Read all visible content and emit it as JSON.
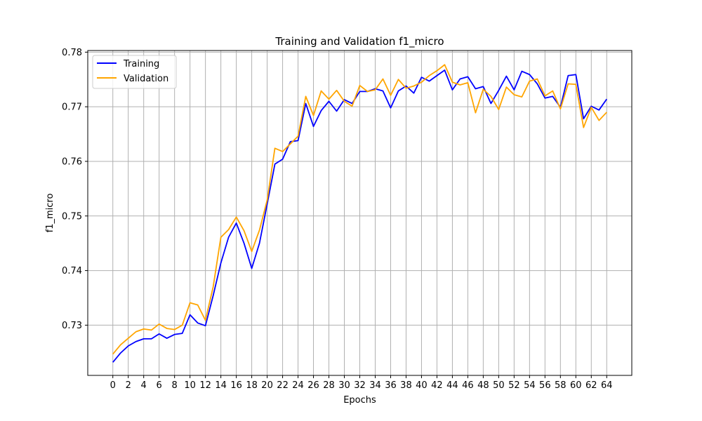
{
  "chart_data": {
    "type": "line",
    "title": "Training and Validation f1_micro",
    "xlabel": "Epochs",
    "ylabel": "f1_micro",
    "xlim": [
      -3.25,
      67.25
    ],
    "ylim": [
      0.7208,
      0.7803
    ],
    "grid": true,
    "legend_position": "top-left",
    "x_ticks": [
      0,
      2,
      4,
      6,
      8,
      10,
      12,
      14,
      16,
      18,
      20,
      22,
      24,
      26,
      28,
      30,
      32,
      34,
      36,
      38,
      40,
      42,
      44,
      46,
      48,
      50,
      52,
      54,
      56,
      58,
      60,
      62,
      64
    ],
    "x_tick_labels": [
      "0",
      "2",
      "4",
      "6",
      "8",
      "10",
      "12",
      "14",
      "16",
      "18",
      "20",
      "22",
      "24",
      "26",
      "28",
      "30",
      "32",
      "34",
      "36",
      "38",
      "40",
      "42",
      "44",
      "46",
      "48",
      "50",
      "52",
      "54",
      "56",
      "58",
      "60",
      "62",
      "64"
    ],
    "y_ticks": [
      0.73,
      0.74,
      0.75,
      0.76,
      0.77,
      0.78
    ],
    "y_tick_labels": [
      "0.73",
      "0.74",
      "0.75",
      "0.76",
      "0.77",
      "0.78"
    ],
    "x": [
      0,
      1,
      2,
      3,
      4,
      5,
      6,
      7,
      8,
      9,
      10,
      11,
      12,
      13,
      14,
      15,
      16,
      17,
      18,
      19,
      20,
      21,
      22,
      23,
      24,
      25,
      26,
      27,
      28,
      29,
      30,
      31,
      32,
      33,
      34,
      35,
      36,
      37,
      38,
      39,
      40,
      41,
      42,
      43,
      44,
      45,
      46,
      47,
      48,
      49,
      50,
      51,
      52,
      53,
      54,
      55,
      56,
      57,
      58,
      59,
      60,
      61,
      62,
      63,
      64
    ],
    "series": [
      {
        "name": "Training",
        "color": "#0000ff",
        "values": [
          0.7232,
          0.7249,
          0.7262,
          0.727,
          0.7275,
          0.7275,
          0.7284,
          0.7276,
          0.7283,
          0.7285,
          0.7319,
          0.7304,
          0.7299,
          0.7354,
          0.7414,
          0.7461,
          0.7487,
          0.745,
          0.7404,
          0.745,
          0.7522,
          0.7595,
          0.7604,
          0.7636,
          0.7638,
          0.7706,
          0.7664,
          0.7693,
          0.771,
          0.7692,
          0.7713,
          0.7706,
          0.7728,
          0.7728,
          0.7733,
          0.7729,
          0.7698,
          0.7729,
          0.7738,
          0.7725,
          0.7754,
          0.7747,
          0.7757,
          0.7767,
          0.7731,
          0.7751,
          0.7755,
          0.7733,
          0.7737,
          0.7706,
          0.773,
          0.7756,
          0.7731,
          0.7765,
          0.7759,
          0.7742,
          0.7716,
          0.7719,
          0.7699,
          0.7757,
          0.7759,
          0.7678,
          0.7701,
          0.7694,
          0.7714
        ]
      },
      {
        "name": "Validation",
        "color": "#ffa500",
        "values": [
          0.7247,
          0.7264,
          0.7276,
          0.7288,
          0.7293,
          0.7291,
          0.7302,
          0.7294,
          0.7292,
          0.73,
          0.7341,
          0.7337,
          0.7309,
          0.737,
          0.7461,
          0.7475,
          0.7498,
          0.7473,
          0.7435,
          0.7474,
          0.7529,
          0.7624,
          0.7618,
          0.7632,
          0.7646,
          0.7719,
          0.7684,
          0.7729,
          0.7714,
          0.773,
          0.771,
          0.7701,
          0.7739,
          0.7728,
          0.7731,
          0.7751,
          0.7721,
          0.775,
          0.7734,
          0.7738,
          0.7745,
          0.7757,
          0.7766,
          0.7777,
          0.7745,
          0.774,
          0.7744,
          0.7689,
          0.7732,
          0.7719,
          0.7695,
          0.7736,
          0.7722,
          0.7718,
          0.7747,
          0.7751,
          0.772,
          0.7729,
          0.7696,
          0.7742,
          0.7741,
          0.7662,
          0.7699,
          0.7675,
          0.769
        ]
      }
    ]
  }
}
